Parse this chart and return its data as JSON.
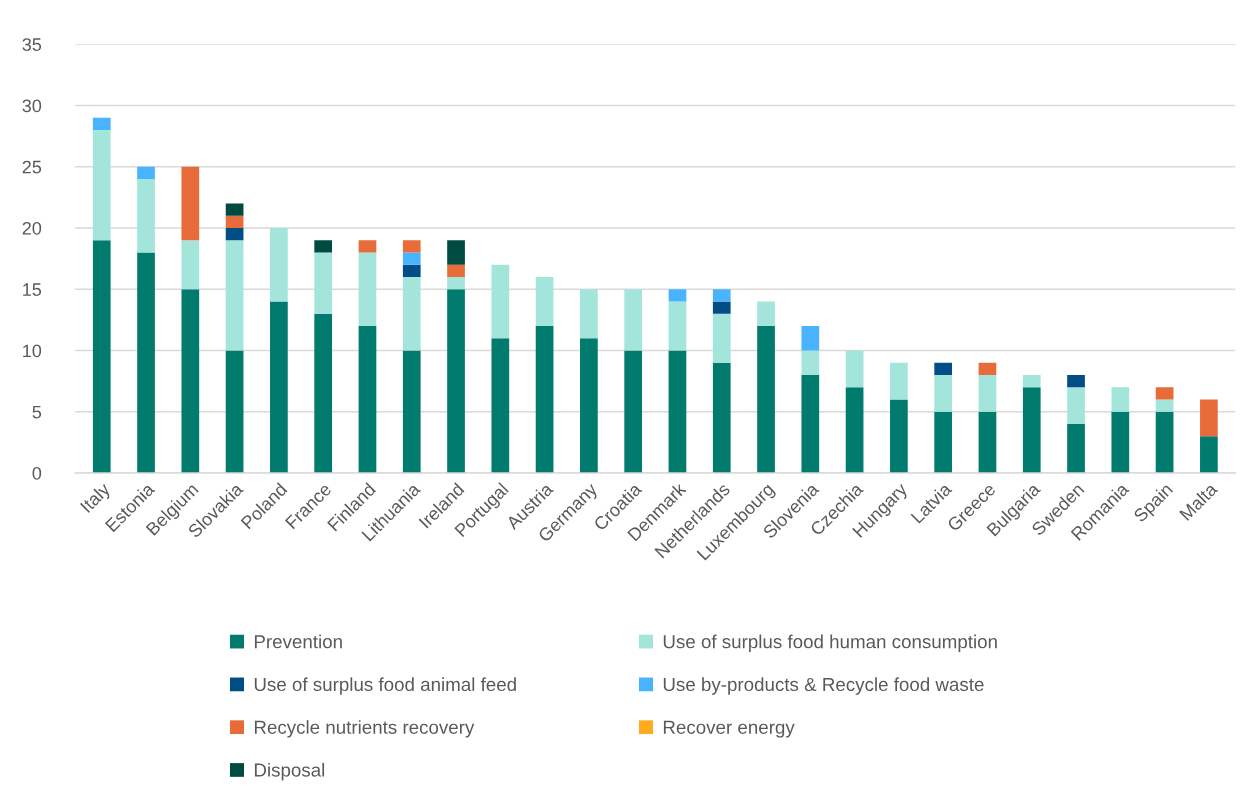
{
  "chart_data": {
    "type": "bar",
    "stacked": true,
    "categories": [
      "Italy",
      "Estonia",
      "Belgium",
      "Slovakia",
      "Poland",
      "France",
      "Finland",
      "Lithuania",
      "Ireland",
      "Portugal",
      "Austria",
      "Germany",
      "Croatia",
      "Denmark",
      "Netherlands",
      "Luxembourg",
      "Slovenia",
      "Czechia",
      "Hungary",
      "Latvia",
      "Greece",
      "Bulgaria",
      "Sweden",
      "Romania",
      "Spain",
      "Malta"
    ],
    "series": [
      {
        "name": "Prevention",
        "color": "#007b6e",
        "values": [
          19,
          18,
          15,
          10,
          14,
          13,
          12,
          10,
          15,
          11,
          12,
          11,
          10,
          10,
          9,
          12,
          8,
          7,
          6,
          5,
          5,
          7,
          4,
          5,
          5,
          3
        ]
      },
      {
        "name": "Use of surplus food human consumption",
        "color": "#a3e5db",
        "values": [
          9,
          6,
          4,
          9,
          6,
          5,
          6,
          6,
          1,
          6,
          4,
          4,
          5,
          4,
          4,
          2,
          2,
          3,
          3,
          3,
          3,
          1,
          3,
          2,
          1,
          0
        ]
      },
      {
        "name": "Use of surplus food animal feed",
        "color": "#004e85",
        "values": [
          0,
          0,
          0,
          1,
          0,
          0,
          0,
          1,
          0,
          0,
          0,
          0,
          0,
          0,
          1,
          0,
          0,
          0,
          0,
          1,
          0,
          0,
          1,
          0,
          0,
          0
        ]
      },
      {
        "name": "Use by-products & Recycle food waste",
        "color": "#4ab3ff",
        "values": [
          1,
          1,
          0,
          0,
          0,
          0,
          0,
          1,
          0,
          0,
          0,
          0,
          0,
          1,
          1,
          0,
          2,
          0,
          0,
          0,
          0,
          0,
          0,
          0,
          0,
          0
        ]
      },
      {
        "name": "Recycle nutrients recovery",
        "color": "#e86c3a",
        "values": [
          0,
          0,
          6,
          1,
          0,
          0,
          1,
          1,
          1,
          0,
          0,
          0,
          0,
          0,
          0,
          0,
          0,
          0,
          0,
          0,
          1,
          0,
          0,
          0,
          1,
          3
        ]
      },
      {
        "name": "Recover energy",
        "color": "#ffab1f",
        "values": [
          0,
          0,
          0,
          0,
          0,
          0,
          0,
          0,
          0,
          0,
          0,
          0,
          0,
          0,
          0,
          0,
          0,
          0,
          0,
          0,
          0,
          0,
          0,
          0,
          0,
          0
        ]
      },
      {
        "name": "Disposal",
        "color": "#004b41",
        "values": [
          0,
          0,
          0,
          1,
          0,
          1,
          0,
          0,
          2,
          0,
          0,
          0,
          0,
          0,
          0,
          0,
          0,
          0,
          0,
          0,
          0,
          0,
          0,
          0,
          0,
          0
        ]
      }
    ],
    "ylim": [
      0,
      35
    ],
    "yticks": [
      0,
      5,
      10,
      15,
      20,
      25,
      30,
      35
    ],
    "grid": "y",
    "legend": "bottom"
  }
}
